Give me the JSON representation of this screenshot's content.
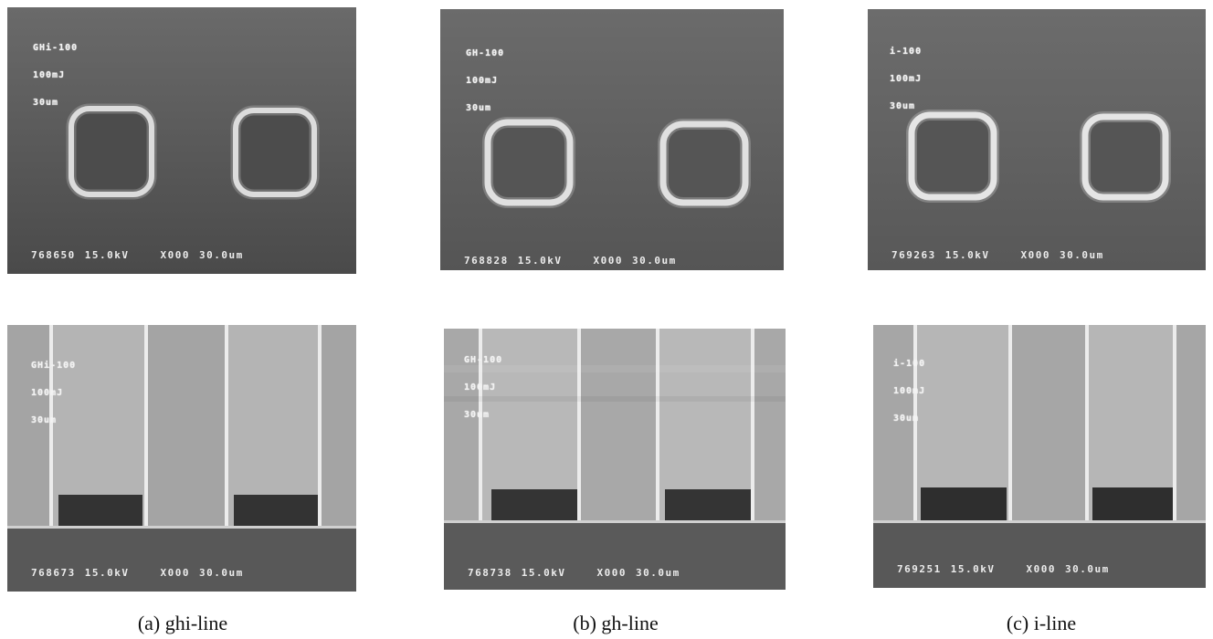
{
  "panels": [
    {
      "id": "a-top",
      "label": [
        "GHi-100",
        "100mJ",
        "30um"
      ],
      "stamp": {
        "id": "768650",
        "voltage": "15.0kV",
        "mag": "X000",
        "scale": "30.0um"
      }
    },
    {
      "id": "b-top",
      "label": [
        "GH-100",
        "100mJ",
        "30um"
      ],
      "stamp": {
        "id": "768828",
        "voltage": "15.0kV",
        "mag": "X000",
        "scale": "30.0um"
      }
    },
    {
      "id": "c-top",
      "label": [
        "i-100",
        "100mJ",
        "30um"
      ],
      "stamp": {
        "id": "769263",
        "voltage": "15.0kV",
        "mag": "X000",
        "scale": "30.0um"
      }
    },
    {
      "id": "a-bottom",
      "label": [
        "GHi-100",
        "100mJ",
        "30um"
      ],
      "stamp": {
        "id": "768673",
        "voltage": "15.0kV",
        "mag": "X000",
        "scale": "30.0um"
      }
    },
    {
      "id": "b-bottom",
      "label": [
        "GH-100",
        "100mJ",
        "30um"
      ],
      "stamp": {
        "id": "768738",
        "voltage": "15.0kV",
        "mag": "X000",
        "scale": "30.0um"
      }
    },
    {
      "id": "c-bottom",
      "label": [
        "i-100",
        "100mJ",
        "30um"
      ],
      "stamp": {
        "id": "769251",
        "voltage": "15.0kV",
        "mag": "X000",
        "scale": "30.0um"
      }
    }
  ],
  "captions": {
    "a": "(a) ghi-line",
    "b": "(b) gh-line",
    "c": "(c) i-line"
  }
}
